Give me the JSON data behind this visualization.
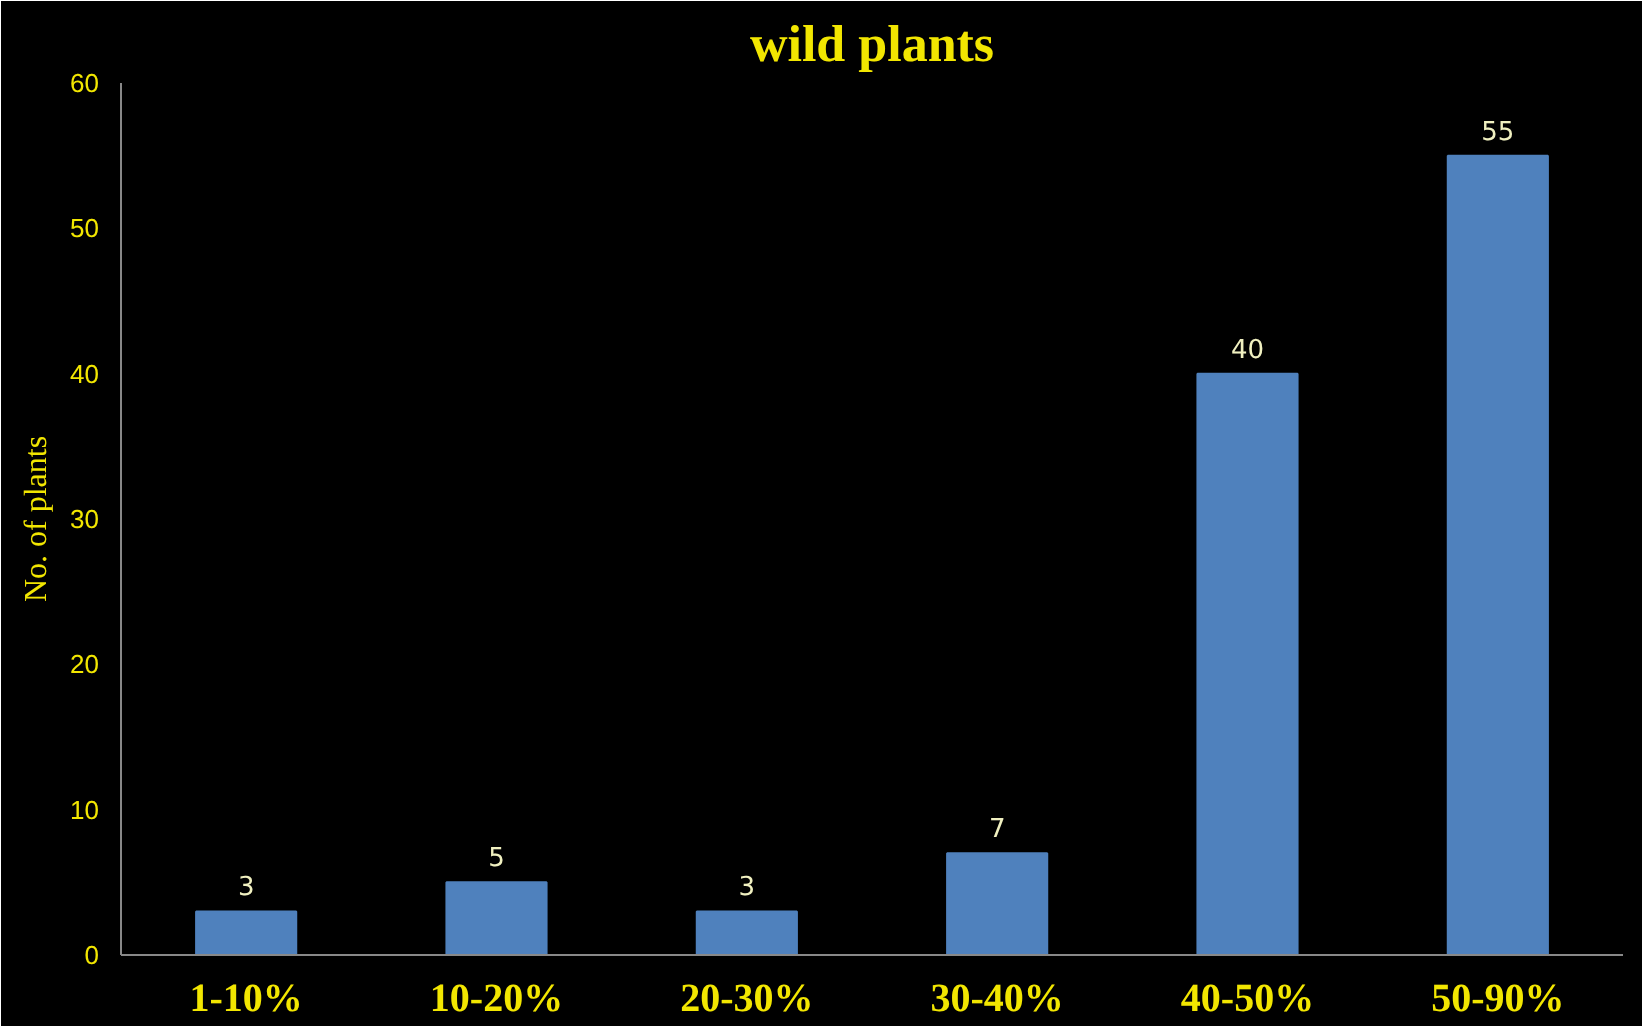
{
  "chart_data": {
    "type": "bar",
    "title": "wild plants",
    "ylabel": "No. of plants",
    "categories": [
      "1-10%",
      "10-20%",
      "20-30%",
      "30-40%",
      "40-50%",
      "50-90%"
    ],
    "values": [
      3,
      5,
      3,
      7,
      40,
      55
    ],
    "color": "#4f81bd",
    "ylim": [
      0,
      60
    ],
    "yticks": [
      0,
      10,
      20,
      30,
      40,
      50,
      60
    ],
    "grid": false,
    "data_labels": true
  }
}
